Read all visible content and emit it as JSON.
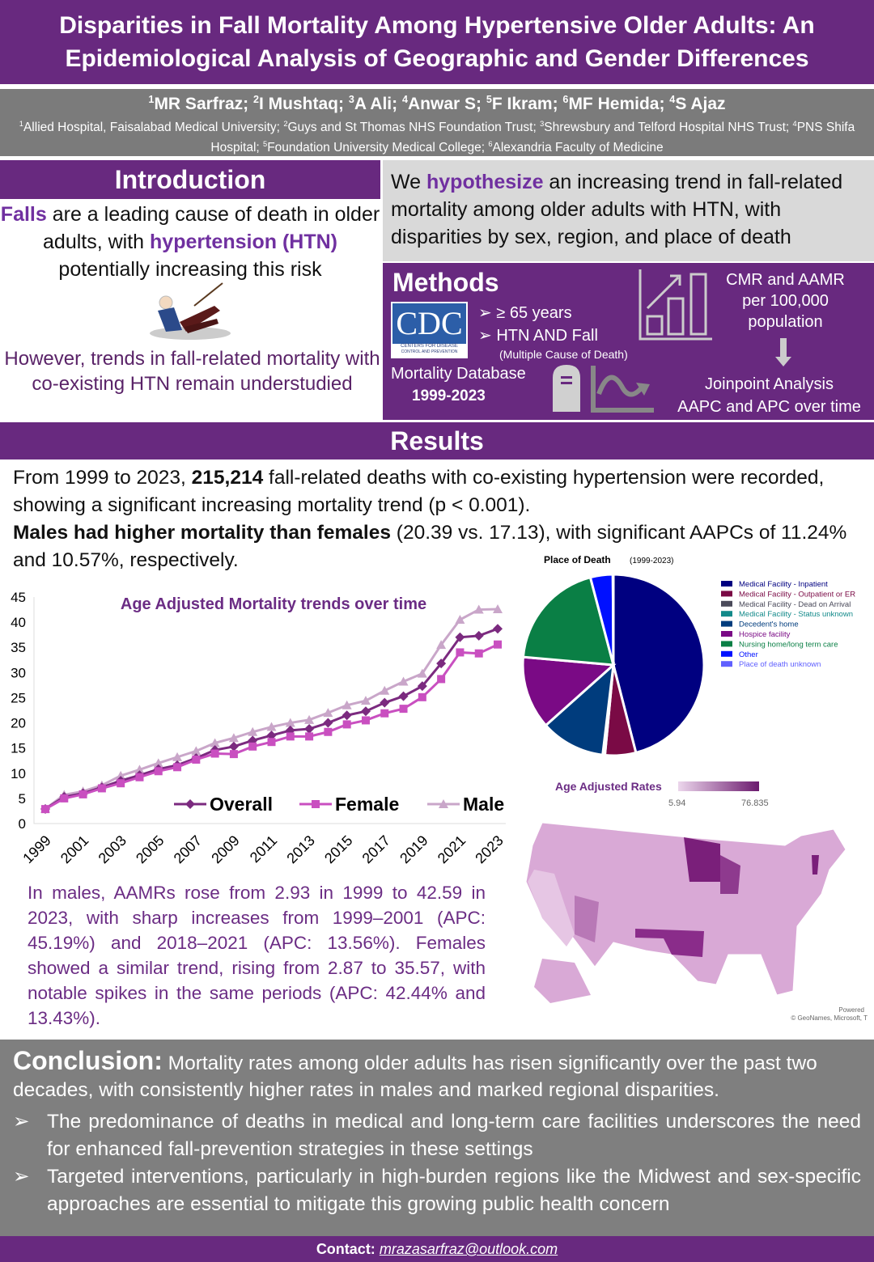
{
  "title": "Disparities in Fall Mortality Among Hypertensive Older Adults: An Epidemiological Analysis of Geographic and Gender Differences",
  "authors": [
    {
      "sup": "1",
      "name": "MR Sarfraz;"
    },
    {
      "sup": "2",
      "name": "I Mushtaq;"
    },
    {
      "sup": "3",
      "name": "A Ali;"
    },
    {
      "sup": "4",
      "name": "Anwar S;"
    },
    {
      "sup": "5",
      "name": "F Ikram;"
    },
    {
      "sup": "6",
      "name": "MF Hemida;"
    },
    {
      "sup": "4",
      "name": "S Ajaz"
    }
  ],
  "affiliations": [
    {
      "sup": "1",
      "text": "Allied Hospital, Faisalabad Medical University; "
    },
    {
      "sup": "2",
      "text": "Guys and St Thomas NHS Foundation Trust; "
    },
    {
      "sup": "3",
      "text": "Shrewsbury and Telford Hospital NHS Trust; "
    },
    {
      "sup": "4",
      "text": "PNS Shifa Hospital; "
    },
    {
      "sup": "5",
      "text": "Foundation University Medical College; "
    },
    {
      "sup": "6",
      "text": "Alexandria Faculty of Medicine"
    }
  ],
  "intro": {
    "heading": "Introduction",
    "p1": {
      "a": "Falls",
      "b": " are a leading cause of death in older adults, with ",
      "c": "hypertension (HTN)",
      "d": " potentially increasing this risk"
    },
    "p2": "However, trends in fall-related mortality with co-existing HTN remain understudied"
  },
  "hypothesis": {
    "a": "We ",
    "b": "hypothesize",
    "c": " an increasing trend in fall-related mortality among older adults with HTN, with disparities by sex, region, and place of death"
  },
  "methods": {
    "heading": "Methods",
    "cdc_logo": "CDC",
    "cdc_sub1": "CENTERS FOR DISEASE",
    "cdc_sub2": "CONTROL AND PREVENTION",
    "bullets": [
      "≥ 65 years",
      "HTN AND Fall"
    ],
    "bullet_note": "(Multiple Cause of Death)",
    "database": "Mortality Database",
    "years": "1999-2023",
    "rates": "CMR and AAMR per 100,000 population",
    "analysis1": "Joinpoint Analysis",
    "analysis2": "AAPC and APC over time"
  },
  "results": {
    "heading": "Results",
    "p1a": "From 1999 to 2023, ",
    "p1b": "215,214",
    "p1c": " fall-related deaths with co-existing hypertension were recorded, showing a significant increasing mortality trend (p < 0.001).",
    "p2a": "Males had higher mortality than females",
    "p2b": " (20.39 vs. 17.13), with significant AAPCs of 11.24% and 10.57%, respectively.",
    "para": "In males, AAMRs rose from 2.93 in 1999 to 42.59 in 2023, with sharp increases from 1999–2001 (APC: 45.19%) and 2018–2021 (APC: 13.56%). Females showed a similar trend, rising from 2.87 to 35.57, with notable spikes in the same periods (APC: 42.44% and 13.43%)."
  },
  "chart_data": [
    {
      "type": "line",
      "title": "Age Adjusted Mortality trends over time",
      "x": [
        1999,
        2000,
        2001,
        2002,
        2003,
        2004,
        2005,
        2006,
        2007,
        2008,
        2009,
        2010,
        2011,
        2012,
        2013,
        2014,
        2015,
        2016,
        2017,
        2018,
        2019,
        2020,
        2021,
        2022,
        2023
      ],
      "xticks": [
        "1999",
        "2001",
        "2003",
        "2005",
        "2007",
        "2009",
        "2011",
        "2013",
        "2015",
        "2017",
        "2019",
        "2021",
        "2023"
      ],
      "ylim": [
        0,
        45
      ],
      "yticks": [
        0,
        5,
        10,
        15,
        20,
        25,
        30,
        35,
        40,
        45
      ],
      "legend": "bottom-right",
      "series": [
        {
          "name": "Overall",
          "color": "#7b2a7f",
          "marker": "diamond",
          "values": [
            2.9,
            5.3,
            6.0,
            7.2,
            8.5,
            9.6,
            10.8,
            11.6,
            13.0,
            14.6,
            15.3,
            16.5,
            17.5,
            18.5,
            18.8,
            20.0,
            21.5,
            22.3,
            24.0,
            25.3,
            27.3,
            31.8,
            37.0,
            37.3,
            38.7
          ]
        },
        {
          "name": "Female",
          "color": "#c94fc0",
          "marker": "square",
          "values": [
            2.87,
            5.0,
            5.8,
            7.0,
            8.0,
            9.2,
            10.4,
            11.2,
            12.7,
            13.9,
            13.8,
            15.3,
            16.2,
            17.3,
            17.3,
            18.2,
            19.7,
            20.5,
            21.9,
            22.8,
            25.1,
            28.7,
            34.0,
            33.8,
            35.57
          ]
        },
        {
          "name": "Male",
          "color": "#c9a6c9",
          "marker": "triangle",
          "values": [
            2.93,
            5.7,
            6.4,
            7.6,
            9.5,
            10.7,
            12.0,
            13.2,
            14.4,
            16.0,
            17.0,
            18.2,
            19.2,
            20.0,
            20.6,
            22.0,
            23.5,
            24.4,
            26.4,
            28.2,
            29.8,
            35.5,
            40.5,
            42.5,
            42.59
          ]
        }
      ]
    },
    {
      "type": "pie",
      "title": "Place of Death",
      "subtitle": "(1999-2023)",
      "legend": "right",
      "slices": [
        {
          "name": "Medical Facility - Inpatient",
          "value": 46,
          "color": "#000080"
        },
        {
          "name": "Medical Facility - Outpatient or ER",
          "value": 5.5,
          "color": "#7a0a45"
        },
        {
          "name": "Medical Facility - Dead on Arrival",
          "value": 0.3,
          "color": "#4a4a5a"
        },
        {
          "name": "Medical Facility - Status unknown",
          "value": 0.1,
          "color": "#138a8a"
        },
        {
          "name": "Decedent's home",
          "value": 11.5,
          "color": "#003c7d"
        },
        {
          "name": "Hospice facility",
          "value": 13,
          "color": "#7a0a85"
        },
        {
          "name": "Nursing home/long term care",
          "value": 19.5,
          "color": "#0a7f45"
        },
        {
          "name": "Other",
          "value": 4,
          "color": "#0010ff"
        },
        {
          "name": "Place of death unknown",
          "value": 0.1,
          "color": "#6060ff"
        }
      ]
    },
    {
      "type": "heatmap",
      "title": "Age Adjusted Rates",
      "scale_min": "5.94",
      "scale_max": "76.835",
      "scale_colors": [
        "#ecd6ec",
        "#6b1a6e"
      ],
      "highest": [
        "Minnesota",
        "Wisconsin",
        "Oklahoma",
        "Vermont"
      ],
      "credit1": "Powered",
      "credit2": "© GeoNames, Microsoft, T"
    }
  ],
  "conclusion": {
    "heading": "Conclusion:",
    "lead": " Mortality rates among older adults has risen significantly over the past two decades, with consistently higher rates in males and marked regional disparities.",
    "bullets": [
      "The predominance of deaths in medical and long-term care facilities underscores the need for enhanced fall-prevention strategies in these settings",
      "Targeted interventions, particularly in high-burden regions like the Midwest and sex-specific approaches are essential to mitigate this growing public health concern"
    ],
    "bullet_icon": "➢"
  },
  "contact": {
    "label": "Contact:",
    "email": "mrazasarfraz@outlook.com"
  },
  "colors": {
    "brand_purple": "#68297f",
    "highlight": "#7030a0",
    "grey": "#7f7f7f",
    "light_grey": "#d9d9d9"
  }
}
